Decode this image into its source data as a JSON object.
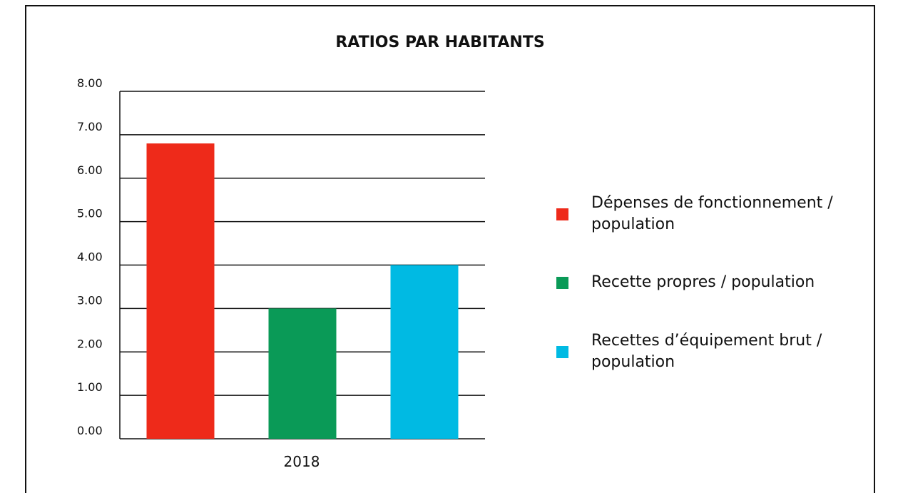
{
  "chart_data": {
    "type": "bar",
    "title": "RATIOS PAR HABITANTS",
    "categories": [
      "2018"
    ],
    "series": [
      {
        "name": "Dépenses de fonctionnement / population",
        "color": "#ee2a1a",
        "values": [
          6.8
        ]
      },
      {
        "name": "Recette propres / population",
        "color": "#0a9a57",
        "values": [
          3.0
        ]
      },
      {
        "name": "Recettes d’équipement brut / population",
        "color": "#00bae3",
        "values": [
          4.0
        ]
      }
    ],
    "ylim": [
      0,
      8
    ],
    "yticks": [
      {
        "value": 0,
        "label": "0.00"
      },
      {
        "value": 1,
        "label": "1.00"
      },
      {
        "value": 2,
        "label": "2.00"
      },
      {
        "value": 3,
        "label": "3.00"
      },
      {
        "value": 4,
        "label": "4.00"
      },
      {
        "value": 5,
        "label": "5.00"
      },
      {
        "value": 6,
        "label": "6.00"
      },
      {
        "value": 7,
        "label": "7.00"
      },
      {
        "value": 8,
        "label": "8.00"
      }
    ],
    "grid": true,
    "legend": "right"
  }
}
